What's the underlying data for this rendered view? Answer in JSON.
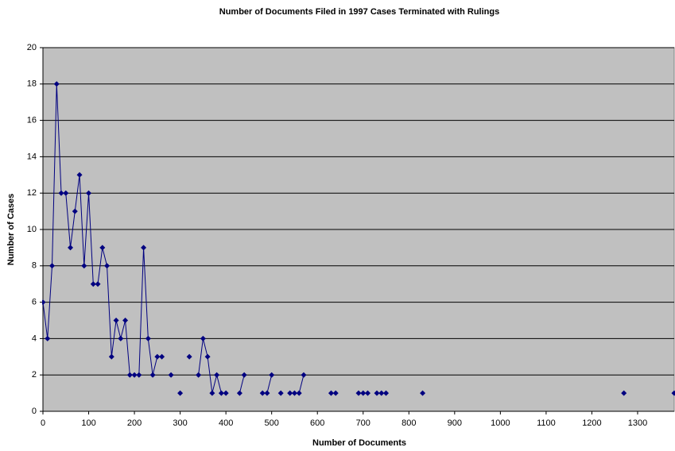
{
  "chart_data": {
    "type": "line",
    "title": "Number of Documents Filed in 1997 Cases Terminated with Rulings",
    "x_label": "Number of Documents",
    "y_label": "Number of Cases",
    "x": [
      0,
      10,
      20,
      30,
      40,
      50,
      60,
      70,
      80,
      90,
      100,
      110,
      120,
      130,
      140,
      150,
      160,
      170,
      180,
      190,
      200,
      210,
      220,
      230,
      240,
      250,
      260,
      270,
      280,
      290,
      300,
      310,
      320,
      330,
      340,
      350,
      360,
      370,
      380,
      390,
      400,
      410,
      420,
      430,
      440,
      450,
      460,
      470,
      480,
      490,
      500,
      510,
      520,
      530,
      540,
      550,
      560,
      570,
      580,
      590,
      600,
      610,
      620,
      630,
      640,
      650,
      660,
      670,
      680,
      690,
      700,
      710,
      720,
      730,
      740,
      750,
      760,
      770,
      780,
      790,
      800,
      810,
      820,
      830,
      840,
      850,
      860,
      870,
      880,
      890,
      900,
      910,
      920,
      930,
      940,
      950,
      960,
      970,
      980,
      990,
      1000,
      1010,
      1020,
      1030,
      1040,
      1050,
      1060,
      1070,
      1080,
      1090,
      1100,
      1110,
      1120,
      1130,
      1140,
      1150,
      1160,
      1170,
      1180,
      1190,
      1200,
      1210,
      1220,
      1230,
      1240,
      1250,
      1260,
      1270,
      1280,
      1290,
      1300,
      1310,
      1320,
      1330,
      1340,
      1350,
      1360,
      1370,
      1380
    ],
    "series": [
      {
        "name": "Number of Cases",
        "color": "#000080",
        "values": [
          6,
          4,
          8,
          18,
          12,
          12,
          9,
          11,
          13,
          8,
          12,
          7,
          7,
          9,
          8,
          3,
          5,
          4,
          5,
          2,
          2,
          2,
          9,
          4,
          2,
          3,
          3,
          null,
          2,
          null,
          1,
          null,
          3,
          null,
          2,
          4,
          3,
          1,
          2,
          1,
          1,
          null,
          null,
          1,
          2,
          null,
          null,
          null,
          1,
          1,
          2,
          null,
          1,
          null,
          1,
          1,
          1,
          2,
          null,
          null,
          null,
          null,
          null,
          1,
          1,
          null,
          null,
          null,
          null,
          1,
          1,
          1,
          null,
          1,
          1,
          1,
          null,
          null,
          null,
          null,
          null,
          null,
          null,
          1,
          null,
          null,
          null,
          null,
          null,
          null,
          null,
          null,
          null,
          null,
          null,
          null,
          null,
          null,
          null,
          null,
          null,
          null,
          null,
          null,
          null,
          null,
          null,
          null,
          null,
          null,
          null,
          null,
          null,
          null,
          null,
          null,
          null,
          null,
          null,
          null,
          null,
          null,
          null,
          null,
          null,
          null,
          null,
          1,
          null,
          null,
          null,
          null,
          null,
          null,
          null,
          null,
          null,
          null,
          1
        ]
      }
    ],
    "xlim": [
      0,
      1380
    ],
    "ylim": [
      0,
      20
    ],
    "xticks": [
      0,
      100,
      200,
      300,
      400,
      500,
      600,
      700,
      800,
      900,
      1000,
      1100,
      1200,
      1300
    ],
    "yticks": [
      0,
      2,
      4,
      6,
      8,
      10,
      12,
      14,
      16,
      18,
      20
    ],
    "grid": true,
    "plot_background": "#c0c0c0"
  }
}
